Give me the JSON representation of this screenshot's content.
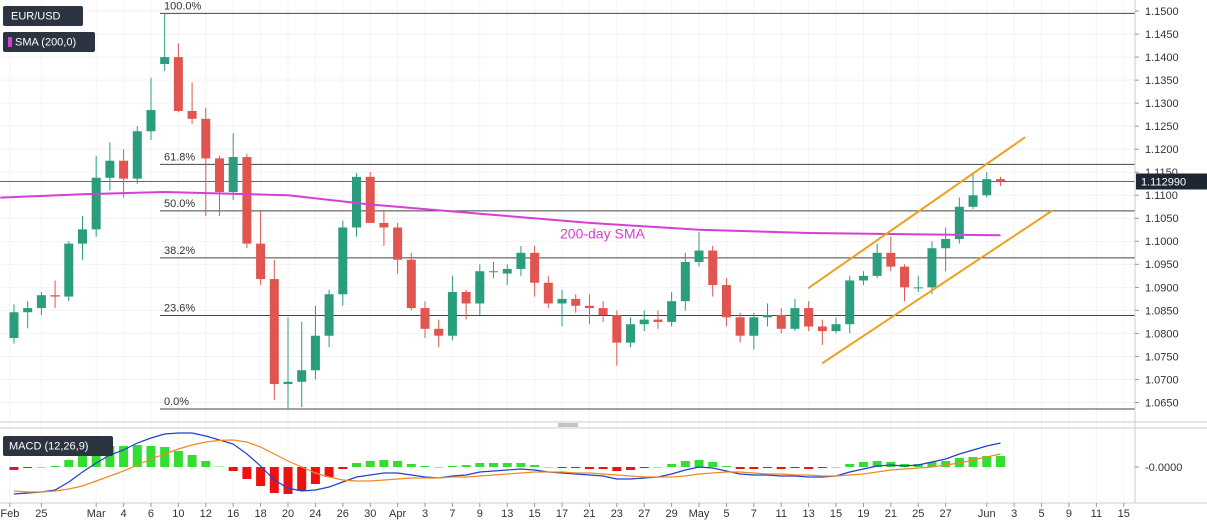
{
  "chart_data": [
    {
      "type": "candlestick",
      "xlim": [
        -1.02,
        81.82
      ],
      "ylim": [
        1.0612,
        1.1524
      ],
      "grid": true,
      "yticks": [
        {
          "value": 1.15,
          "label": "1.1500"
        },
        {
          "value": 1.145,
          "label": "1.1450"
        },
        {
          "value": 1.14,
          "label": "1.1400"
        },
        {
          "value": 1.135,
          "label": "1.1350"
        },
        {
          "value": 1.13,
          "label": "1.1300"
        },
        {
          "value": 1.125,
          "label": "1.1250"
        },
        {
          "value": 1.12,
          "label": "1.1200"
        },
        {
          "value": 1.115,
          "label": "1.1150"
        },
        {
          "value": 1.11,
          "label": "1.1100"
        },
        {
          "value": 1.105,
          "label": "1.1050"
        },
        {
          "value": 1.1,
          "label": "1.1000"
        },
        {
          "value": 1.095,
          "label": "1.0950"
        },
        {
          "value": 1.09,
          "label": "1.0900"
        },
        {
          "value": 1.085,
          "label": "1.0850"
        },
        {
          "value": 1.08,
          "label": "1.0800"
        },
        {
          "value": 1.075,
          "label": "1.0750"
        },
        {
          "value": 1.07,
          "label": "1.0700"
        },
        {
          "value": 1.065,
          "label": "1.0650"
        }
      ],
      "xticks": [
        {
          "value": -0.3,
          "label": "Feb"
        },
        {
          "value": 2,
          "label": "25"
        },
        {
          "value": 6,
          "label": "Mar"
        },
        {
          "value": 8,
          "label": "4"
        },
        {
          "value": 10,
          "label": "6"
        },
        {
          "value": 12,
          "label": "10"
        },
        {
          "value": 14,
          "label": "12"
        },
        {
          "value": 16,
          "label": "16"
        },
        {
          "value": 18,
          "label": "18"
        },
        {
          "value": 20,
          "label": "20"
        },
        {
          "value": 22,
          "label": "24"
        },
        {
          "value": 24,
          "label": "26"
        },
        {
          "value": 26,
          "label": "30"
        },
        {
          "value": 28,
          "label": "Apr"
        },
        {
          "value": 30,
          "label": "3"
        },
        {
          "value": 32,
          "label": "7"
        },
        {
          "value": 34,
          "label": "9"
        },
        {
          "value": 36,
          "label": "13"
        },
        {
          "value": 38,
          "label": "15"
        },
        {
          "value": 40,
          "label": "17"
        },
        {
          "value": 42,
          "label": "21"
        },
        {
          "value": 44,
          "label": "23"
        },
        {
          "value": 46,
          "label": "27"
        },
        {
          "value": 48,
          "label": "29"
        },
        {
          "value": 50,
          "label": "May"
        },
        {
          "value": 52,
          "label": "5"
        },
        {
          "value": 54,
          "label": "7"
        },
        {
          "value": 56,
          "label": "11"
        },
        {
          "value": 58,
          "label": "13"
        },
        {
          "value": 60,
          "label": "15"
        },
        {
          "value": 62,
          "label": "19"
        },
        {
          "value": 64,
          "label": "21"
        },
        {
          "value": 66,
          "label": "25"
        },
        {
          "value": 68,
          "label": "27"
        },
        {
          "value": 71,
          "label": "Jun"
        },
        {
          "value": 73,
          "label": "3"
        },
        {
          "value": 75,
          "label": "5"
        },
        {
          "value": 77,
          "label": "9"
        },
        {
          "value": 79,
          "label": "11"
        },
        {
          "value": 81,
          "label": "15"
        }
      ],
      "series": [
        {
          "name": "EUR/USD",
          "up_color": "#2a9d7c",
          "down_color": "#e0554f",
          "ohlc": [
            [
              1.079,
              1.0863,
              1.0778,
              1.0846
            ],
            [
              1.0846,
              1.087,
              1.0811,
              1.0855
            ],
            [
              1.0855,
              1.089,
              1.084,
              1.0883
            ],
            [
              1.0883,
              1.0915,
              1.0855,
              1.088
            ],
            [
              1.088,
              1.1,
              1.087,
              1.0995
            ],
            [
              1.0995,
              1.1055,
              1.096,
              1.1026
            ],
            [
              1.1026,
              1.1185,
              1.101,
              1.1138
            ],
            [
              1.1138,
              1.1215,
              1.111,
              1.1175
            ],
            [
              1.1175,
              1.12,
              1.1095,
              1.1136
            ],
            [
              1.1136,
              1.125,
              1.1125,
              1.1239
            ],
            [
              1.1239,
              1.1355,
              1.122,
              1.1285
            ],
            [
              1.1385,
              1.1495,
              1.137,
              1.14
            ],
            [
              1.14,
              1.143,
              1.128,
              1.1283
            ],
            [
              1.1283,
              1.1345,
              1.1255,
              1.1266
            ],
            [
              1.1266,
              1.129,
              1.1055,
              1.118
            ],
            [
              1.118,
              1.1185,
              1.1055,
              1.1107
            ],
            [
              1.1107,
              1.1235,
              1.109,
              1.1183
            ],
            [
              1.1183,
              1.119,
              1.0985,
              1.0995
            ],
            [
              1.0995,
              1.1065,
              1.0905,
              1.0918
            ],
            [
              1.0918,
              1.096,
              1.0655,
              1.069
            ],
            [
              1.069,
              1.0835,
              1.0636,
              1.0695
            ],
            [
              1.0695,
              1.0825,
              1.064,
              1.072
            ],
            [
              1.072,
              1.086,
              1.07,
              1.0795
            ],
            [
              1.0795,
              1.0895,
              1.077,
              1.0885
            ],
            [
              1.0885,
              1.1045,
              1.086,
              1.103
            ],
            [
              1.103,
              1.1148,
              1.101,
              1.114
            ],
            [
              1.114,
              1.115,
              1.104,
              1.104
            ],
            [
              1.104,
              1.1065,
              1.099,
              1.103
            ],
            [
              1.103,
              1.104,
              1.093,
              1.096
            ],
            [
              1.096,
              1.0975,
              1.085,
              1.0855
            ],
            [
              1.0855,
              1.087,
              1.079,
              1.081
            ],
            [
              1.081,
              1.083,
              1.077,
              1.0795
            ],
            [
              1.0795,
              1.0925,
              1.0785,
              1.089
            ],
            [
              1.089,
              1.0895,
              1.083,
              1.0865
            ],
            [
              1.0865,
              1.095,
              1.084,
              1.0935
            ],
            [
              1.0935,
              1.0955,
              1.092,
              1.0935
            ],
            [
              1.093,
              1.095,
              1.0905,
              1.094
            ],
            [
              1.094,
              1.099,
              1.0925,
              1.0975
            ],
            [
              1.0975,
              1.099,
              1.088,
              1.091
            ],
            [
              1.091,
              1.0925,
              1.0855,
              1.0865
            ],
            [
              1.0865,
              1.0895,
              1.0815,
              1.0875
            ],
            [
              1.0875,
              1.0885,
              1.0845,
              1.086
            ],
            [
              1.086,
              1.0885,
              1.082,
              1.0855
            ],
            [
              1.0855,
              1.087,
              1.0825,
              1.084
            ],
            [
              1.084,
              1.085,
              1.073,
              1.078
            ],
            [
              1.078,
              1.0835,
              1.077,
              1.082
            ],
            [
              1.082,
              1.085,
              1.0805,
              1.083
            ],
            [
              1.083,
              1.085,
              1.081,
              1.0825
            ],
            [
              1.0825,
              1.089,
              1.0815,
              1.087
            ],
            [
              1.087,
              1.0975,
              1.085,
              1.0955
            ],
            [
              1.0955,
              1.102,
              1.0945,
              1.098
            ],
            [
              1.098,
              1.099,
              1.088,
              1.0905
            ],
            [
              1.0905,
              1.092,
              1.0815,
              1.0835
            ],
            [
              1.0835,
              1.0845,
              1.078,
              1.0795
            ],
            [
              1.0795,
              1.0845,
              1.0765,
              1.0835
            ],
            [
              1.0835,
              1.0865,
              1.0815,
              1.084
            ],
            [
              1.084,
              1.0855,
              1.08,
              1.081
            ],
            [
              1.081,
              1.0875,
              1.0805,
              1.0855
            ],
            [
              1.0855,
              1.087,
              1.0805,
              1.0815
            ],
            [
              1.0815,
              1.083,
              1.0775,
              1.0805
            ],
            [
              1.0805,
              1.0835,
              1.08,
              1.082
            ],
            [
              1.082,
              1.0925,
              1.08,
              1.0915
            ],
            [
              1.0915,
              1.0935,
              1.0905,
              1.0925
            ],
            [
              1.0925,
              1.0995,
              1.092,
              1.0975
            ],
            [
              1.0975,
              1.101,
              1.0935,
              1.0945
            ],
            [
              1.0945,
              1.095,
              1.087,
              1.09
            ],
            [
              1.09,
              1.0925,
              1.089,
              1.09
            ],
            [
              1.09,
              1.1,
              1.0885,
              1.0985
            ],
            [
              1.0985,
              1.103,
              1.0935,
              1.1005
            ],
            [
              1.1005,
              1.1095,
              1.0995,
              1.1075
            ],
            [
              1.1075,
              1.1145,
              1.107,
              1.11
            ],
            [
              1.11,
              1.115,
              1.1095,
              1.1135
            ],
            [
              1.1135,
              1.114,
              1.112,
              1.113
            ]
          ]
        },
        {
          "name": "SMA (200,0)",
          "color": "#d63fd6",
          "x": [
            -1,
            5,
            11,
            20,
            26,
            34,
            42,
            50,
            58,
            66,
            72
          ],
          "values": [
            1.1095,
            1.1102,
            1.1107,
            1.11,
            1.108,
            1.106,
            1.104,
            1.1025,
            1.1018,
            1.1015,
            1.1013
          ]
        }
      ],
      "annotation": "200-day SMA",
      "last_price": {
        "value": 1.11299,
        "label": "1.112990"
      },
      "fib_levels": [
        {
          "label": "100.0%",
          "price": 1.1495
        },
        {
          "label": "61.8%",
          "price": 1.1167
        },
        {
          "label": "50.0%",
          "price": 1.1066
        },
        {
          "label": "38.2%",
          "price": 1.0964
        },
        {
          "label": "23.6%",
          "price": 1.0839
        },
        {
          "label": "0.0%",
          "price": 1.0636
        }
      ],
      "channel_color": "#f0a020",
      "channels": [
        {
          "x": [
            57.96,
            73.8
          ],
          "values": [
            1.0898,
            1.1226
          ]
        },
        {
          "x": [
            58.98,
            75.8
          ],
          "values": [
            1.0735,
            1.1067
          ]
        }
      ]
    },
    {
      "type": "macd",
      "title": "MACD (12,26,9)",
      "ylim": [
        -0.0165,
        0.0175
      ],
      "yticks": [
        {
          "value": 0,
          "label": "-0.0000"
        }
      ],
      "macd": {
        "color": "#2040d0",
        "values": [
          -0.0135,
          -0.013,
          -0.0125,
          -0.0115,
          -0.0075,
          -0.0025,
          0.002,
          0.006,
          0.0085,
          0.012,
          0.0145,
          0.0165,
          0.017,
          0.017,
          0.0155,
          0.0135,
          0.0115,
          0.0065,
          0.0005,
          -0.0065,
          -0.0105,
          -0.012,
          -0.0115,
          -0.01,
          -0.0075,
          -0.005,
          -0.004,
          -0.003,
          -0.003,
          -0.004,
          -0.005,
          -0.0055,
          -0.0045,
          -0.004,
          -0.0025,
          -0.002,
          -0.0015,
          -0.001,
          -0.0015,
          -0.0025,
          -0.003,
          -0.0035,
          -0.004,
          -0.0045,
          -0.006,
          -0.006,
          -0.0055,
          -0.005,
          -0.0035,
          -0.0015,
          0,
          -0.0005,
          -0.002,
          -0.0035,
          -0.004,
          -0.004,
          -0.0045,
          -0.0045,
          -0.005,
          -0.005,
          -0.0045,
          -0.0025,
          -0.001,
          0.0005,
          0.001,
          0.0005,
          0.001,
          0.0025,
          0.004,
          0.0065,
          0.0085,
          0.0105,
          0.012
        ]
      },
      "signal": {
        "color": "#f08a20",
        "values": [
          -0.012,
          -0.0125,
          -0.0125,
          -0.012,
          -0.011,
          -0.0095,
          -0.007,
          -0.0045,
          -0.002,
          0.001,
          0.004,
          0.0065,
          0.009,
          0.011,
          0.0125,
          0.0133,
          0.0135,
          0.0125,
          0.01,
          0.0065,
          0.003,
          0,
          -0.003,
          -0.005,
          -0.0065,
          -0.007,
          -0.007,
          -0.0065,
          -0.006,
          -0.0055,
          -0.0055,
          -0.0055,
          -0.005,
          -0.005,
          -0.0045,
          -0.004,
          -0.0035,
          -0.003,
          -0.0025,
          -0.0025,
          -0.0025,
          -0.003,
          -0.003,
          -0.0035,
          -0.004,
          -0.0045,
          -0.005,
          -0.005,
          -0.005,
          -0.0045,
          -0.0035,
          -0.003,
          -0.0025,
          -0.0025,
          -0.003,
          -0.0035,
          -0.0035,
          -0.004,
          -0.004,
          -0.0045,
          -0.0045,
          -0.004,
          -0.0035,
          -0.0025,
          -0.0015,
          -0.001,
          -0.0005,
          0,
          0.001,
          0.002,
          0.0035,
          0.005,
          0.0065
        ]
      },
      "histogram": {
        "up_color": "#33dd33",
        "down_color": "#ee1111",
        "values": [
          -0.0015,
          -0.0005,
          0,
          0.0005,
          0.0035,
          0.007,
          0.009,
          0.0105,
          0.0105,
          0.011,
          0.0105,
          0.01,
          0.008,
          0.006,
          0.003,
          0.0002,
          -0.002,
          -0.006,
          -0.0095,
          -0.013,
          -0.0135,
          -0.012,
          -0.0085,
          -0.005,
          -0.001,
          0.002,
          0.003,
          0.0035,
          0.003,
          0.0015,
          0.0005,
          0,
          0.0005,
          0.001,
          0.002,
          0.002,
          0.002,
          0.002,
          0.001,
          0,
          -0.0005,
          -0.0005,
          -0.001,
          -0.001,
          -0.002,
          -0.0015,
          -0.0005,
          0,
          0.0015,
          0.003,
          0.0035,
          0.0025,
          0.0005,
          -0.001,
          -0.001,
          -0.0005,
          -0.001,
          -0.0005,
          -0.001,
          -0.0005,
          0,
          0.0015,
          0.0025,
          0.003,
          0.0025,
          0.0015,
          0.0015,
          0.0025,
          0.003,
          0.0045,
          0.005,
          0.0055,
          0.0055
        ]
      }
    }
  ]
}
